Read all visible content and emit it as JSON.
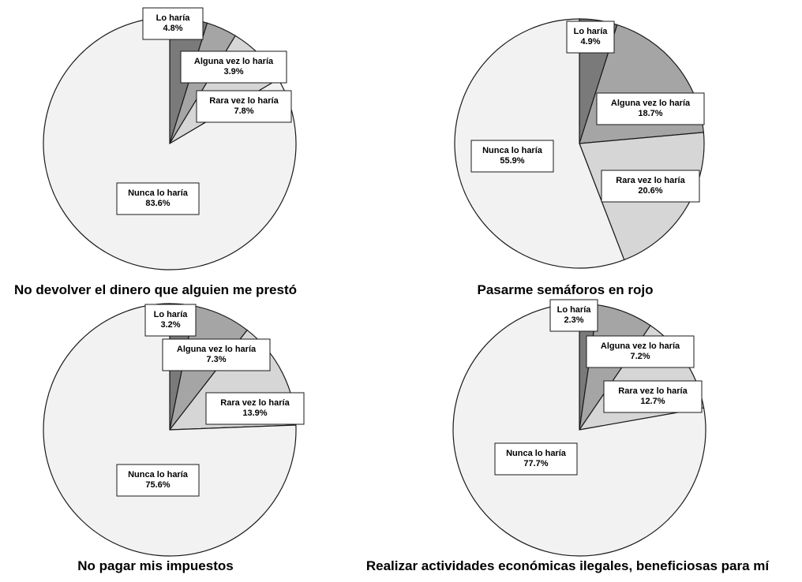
{
  "chart_data": [
    {
      "type": "pie",
      "title": "No devolver el dinero que alguien me prestó",
      "slices": [
        {
          "label": "Lo haría",
          "value": 4.8,
          "value_label": "4.8%",
          "color": "#7a7a7a"
        },
        {
          "label": "Alguna vez lo haría",
          "value": 3.9,
          "value_label": "3.9%",
          "color": "#a5a5a5"
        },
        {
          "label": "Rara vez lo haría",
          "value": 7.8,
          "value_label": "7.8%",
          "color": "#d6d6d6"
        },
        {
          "label": "Nunca lo haría",
          "value": 83.6,
          "value_label": "83.6%",
          "color": "#f2f2f2"
        }
      ]
    },
    {
      "type": "pie",
      "title": "Pasarme semáforos en rojo",
      "slices": [
        {
          "label": "Lo haría",
          "value": 4.9,
          "value_label": "4.9%",
          "color": "#7a7a7a"
        },
        {
          "label": "Alguna vez lo haría",
          "value": 18.7,
          "value_label": "18.7%",
          "color": "#a5a5a5"
        },
        {
          "label": "Rara vez lo haría",
          "value": 20.6,
          "value_label": "20.6%",
          "color": "#d6d6d6"
        },
        {
          "label": "Nunca lo haría",
          "value": 55.9,
          "value_label": "55.9%",
          "color": "#f2f2f2"
        }
      ]
    },
    {
      "type": "pie",
      "title": "No pagar mis impuestos",
      "slices": [
        {
          "label": "Lo haría",
          "value": 3.2,
          "value_label": "3.2%",
          "color": "#7a7a7a"
        },
        {
          "label": "Alguna vez lo haría",
          "value": 7.3,
          "value_label": "7.3%",
          "color": "#a5a5a5"
        },
        {
          "label": "Rara vez lo haría",
          "value": 13.9,
          "value_label": "13.9%",
          "color": "#d6d6d6"
        },
        {
          "label": "Nunca lo haría",
          "value": 75.6,
          "value_label": "75.6%",
          "color": "#f2f2f2"
        }
      ]
    },
    {
      "type": "pie",
      "title": "Realizar actividades económicas ilegales, beneficiosas para mí",
      "slices": [
        {
          "label": "Lo haría",
          "value": 2.3,
          "value_label": "2.3%",
          "color": "#7a7a7a"
        },
        {
          "label": "Alguna vez lo haría",
          "value": 7.2,
          "value_label": "7.2%",
          "color": "#a5a5a5"
        },
        {
          "label": "Rara vez lo haría",
          "value": 12.7,
          "value_label": "12.7%",
          "color": "#d6d6d6"
        },
        {
          "label": "Nunca lo haría",
          "value": 77.7,
          "value_label": "77.7%",
          "color": "#f2f2f2"
        }
      ]
    }
  ]
}
